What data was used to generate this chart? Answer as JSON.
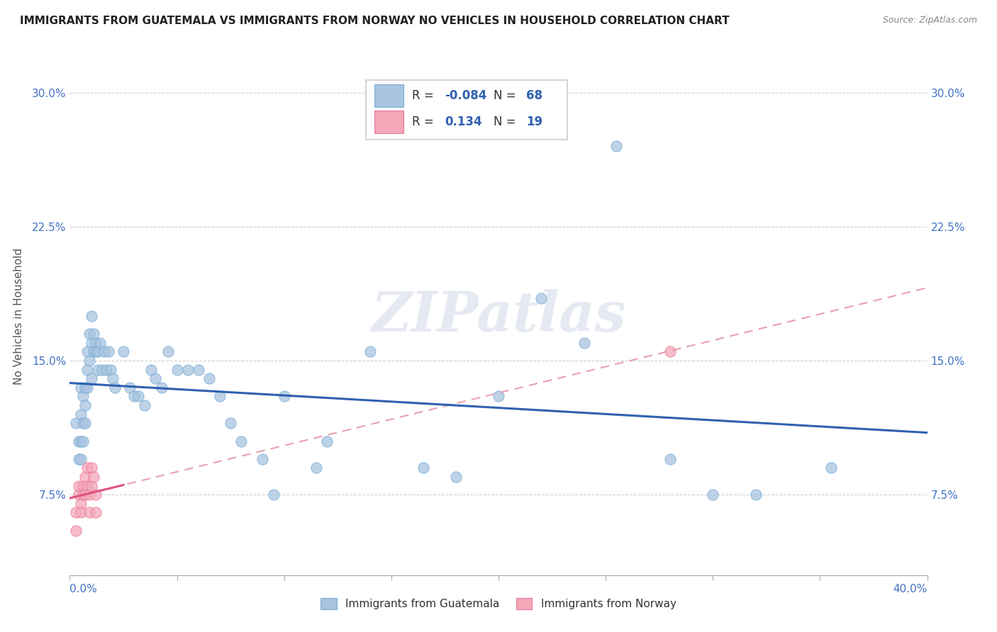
{
  "title": "IMMIGRANTS FROM GUATEMALA VS IMMIGRANTS FROM NORWAY NO VEHICLES IN HOUSEHOLD CORRELATION CHART",
  "source": "Source: ZipAtlas.com",
  "ylabel": "No Vehicles in Household",
  "yticks": [
    0.075,
    0.15,
    0.225,
    0.3
  ],
  "ytick_labels": [
    "7.5%",
    "15.0%",
    "22.5%",
    "30.0%"
  ],
  "xlim": [
    0.0,
    0.4
  ],
  "ylim": [
    0.03,
    0.32
  ],
  "guatemala_color": "#a8c4e0",
  "guatemala_edge": "#7aaed6",
  "norway_color": "#f4a7b9",
  "norway_edge": "#e87a9a",
  "guatemala_line_color": "#3060b0",
  "norway_solid_color": "#e05080",
  "norway_dash_color": "#e8a0b0",
  "watermark": "ZIPatlas",
  "guatemala_scatter": [
    [
      0.003,
      0.115
    ],
    [
      0.004,
      0.105
    ],
    [
      0.004,
      0.095
    ],
    [
      0.005,
      0.135
    ],
    [
      0.005,
      0.12
    ],
    [
      0.005,
      0.105
    ],
    [
      0.005,
      0.095
    ],
    [
      0.006,
      0.13
    ],
    [
      0.006,
      0.115
    ],
    [
      0.006,
      0.105
    ],
    [
      0.007,
      0.135
    ],
    [
      0.007,
      0.125
    ],
    [
      0.007,
      0.115
    ],
    [
      0.008,
      0.155
    ],
    [
      0.008,
      0.145
    ],
    [
      0.008,
      0.135
    ],
    [
      0.009,
      0.165
    ],
    [
      0.009,
      0.15
    ],
    [
      0.01,
      0.175
    ],
    [
      0.01,
      0.16
    ],
    [
      0.01,
      0.14
    ],
    [
      0.011,
      0.165
    ],
    [
      0.011,
      0.155
    ],
    [
      0.012,
      0.16
    ],
    [
      0.012,
      0.155
    ],
    [
      0.013,
      0.155
    ],
    [
      0.013,
      0.145
    ],
    [
      0.014,
      0.16
    ],
    [
      0.015,
      0.145
    ],
    [
      0.016,
      0.155
    ],
    [
      0.017,
      0.145
    ],
    [
      0.018,
      0.155
    ],
    [
      0.019,
      0.145
    ],
    [
      0.02,
      0.14
    ],
    [
      0.021,
      0.135
    ],
    [
      0.025,
      0.155
    ],
    [
      0.028,
      0.135
    ],
    [
      0.03,
      0.13
    ],
    [
      0.032,
      0.13
    ],
    [
      0.035,
      0.125
    ],
    [
      0.038,
      0.145
    ],
    [
      0.04,
      0.14
    ],
    [
      0.043,
      0.135
    ],
    [
      0.046,
      0.155
    ],
    [
      0.05,
      0.145
    ],
    [
      0.055,
      0.145
    ],
    [
      0.06,
      0.145
    ],
    [
      0.065,
      0.14
    ],
    [
      0.07,
      0.13
    ],
    [
      0.075,
      0.115
    ],
    [
      0.08,
      0.105
    ],
    [
      0.09,
      0.095
    ],
    [
      0.095,
      0.075
    ],
    [
      0.1,
      0.13
    ],
    [
      0.115,
      0.09
    ],
    [
      0.12,
      0.105
    ],
    [
      0.14,
      0.155
    ],
    [
      0.165,
      0.09
    ],
    [
      0.18,
      0.085
    ],
    [
      0.2,
      0.13
    ],
    [
      0.22,
      0.185
    ],
    [
      0.24,
      0.16
    ],
    [
      0.255,
      0.27
    ],
    [
      0.28,
      0.095
    ],
    [
      0.3,
      0.075
    ],
    [
      0.32,
      0.075
    ],
    [
      0.355,
      0.09
    ]
  ],
  "norway_scatter": [
    [
      0.003,
      0.055
    ],
    [
      0.003,
      0.065
    ],
    [
      0.004,
      0.075
    ],
    [
      0.004,
      0.08
    ],
    [
      0.005,
      0.07
    ],
    [
      0.005,
      0.065
    ],
    [
      0.006,
      0.08
    ],
    [
      0.006,
      0.075
    ],
    [
      0.007,
      0.085
    ],
    [
      0.007,
      0.075
    ],
    [
      0.008,
      0.09
    ],
    [
      0.008,
      0.08
    ],
    [
      0.009,
      0.075
    ],
    [
      0.009,
      0.065
    ],
    [
      0.01,
      0.09
    ],
    [
      0.01,
      0.08
    ],
    [
      0.011,
      0.085
    ],
    [
      0.012,
      0.075
    ],
    [
      0.012,
      0.065
    ],
    [
      0.28,
      0.155
    ]
  ]
}
